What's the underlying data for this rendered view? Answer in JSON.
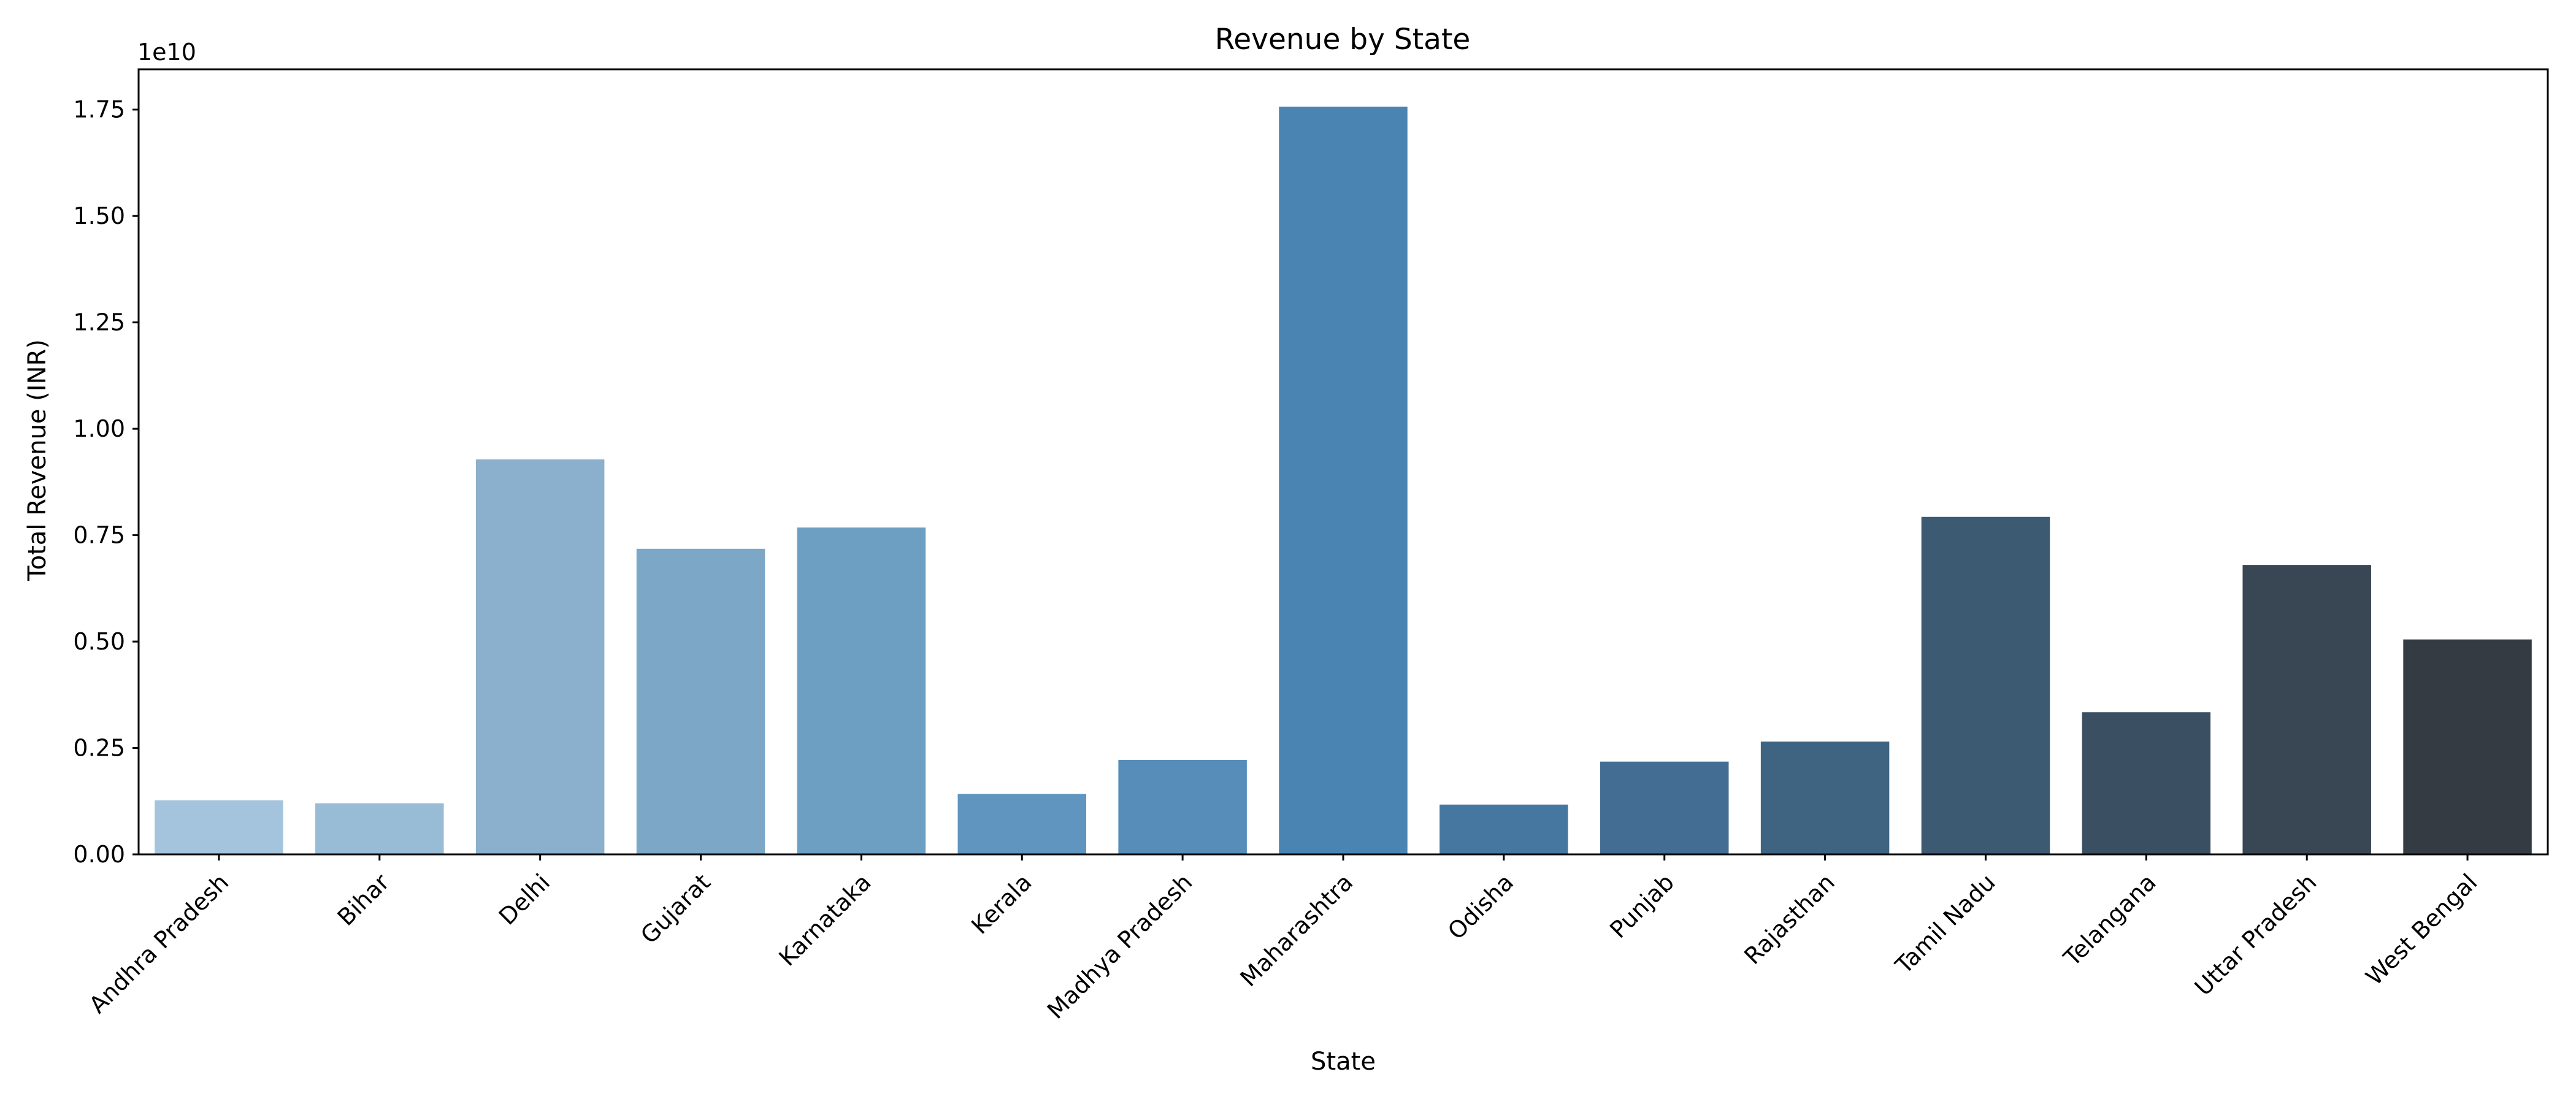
{
  "chart_data": {
    "type": "bar",
    "title": "Revenue by State",
    "xlabel": "State",
    "ylabel": "Total Revenue (INR)",
    "y_offset_label": "1e10",
    "categories": [
      "Andhra Pradesh",
      "Bihar",
      "Delhi",
      "Gujarat",
      "Karnataka",
      "Kerala",
      "Madhya Pradesh",
      "Maharashtra",
      "Odisha",
      "Punjab",
      "Rajasthan",
      "Tamil Nadu",
      "Telangana",
      "Uttar Pradesh",
      "West Bengal"
    ],
    "values": [
      1270000000,
      1200000000,
      9280000000,
      7180000000,
      7680000000,
      1420000000,
      2220000000,
      17570000000,
      1170000000,
      2180000000,
      2650000000,
      7930000000,
      3340000000,
      6800000000,
      5050000000
    ],
    "bar_colors": [
      "#A3C4DC",
      "#98BBD6",
      "#8AB0CD",
      "#7CA7C7",
      "#6D9FC2",
      "#5F95BE",
      "#568DB9",
      "#4A84B3",
      "#4677A1",
      "#436D92",
      "#3F6482",
      "#3C5A72",
      "#3B4F62",
      "#394653",
      "#353B43"
    ],
    "yticks": [
      0,
      0.25,
      0.5,
      0.75,
      1.0,
      1.25,
      1.5,
      1.75
    ],
    "ytick_labels": [
      "0.00",
      "0.25",
      "0.50",
      "0.75",
      "1.00",
      "1.25",
      "1.50",
      "1.75"
    ],
    "ylim": [
      0,
      1.8447
    ],
    "y_scale_factor": 10000000000,
    "grid": false,
    "legend": "none"
  }
}
